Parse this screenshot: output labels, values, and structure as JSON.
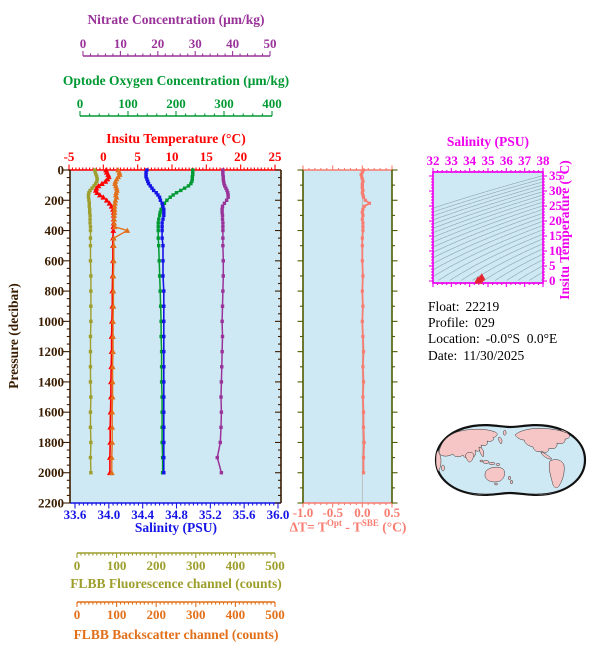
{
  "page": {
    "background": "#ffffff",
    "plot_background": "#cfe9f4"
  },
  "info_box": {
    "lines": [
      {
        "label": "Float:",
        "value": "22219"
      },
      {
        "label": "Profile:",
        "value": "029"
      },
      {
        "label": "Location:",
        "value": "-0.0°S  0.0°E"
      },
      {
        "label": "Date:",
        "value": "11/30/2025"
      }
    ]
  },
  "chart_data": {
    "type": "line",
    "title": "Float profile plot",
    "pressures": [
      0,
      15,
      30,
      45,
      60,
      75,
      90,
      105,
      120,
      135,
      150,
      165,
      180,
      200,
      220,
      240,
      260,
      280,
      300,
      325,
      350,
      375,
      400,
      450,
      500,
      600,
      700,
      800,
      900,
      1000,
      1100,
      1200,
      1300,
      1400,
      1500,
      1600,
      1700,
      1800,
      1900,
      2000
    ],
    "pressure_axis": {
      "label": "Pressure (decibar)",
      "ticks": [
        0,
        200,
        400,
        600,
        800,
        1000,
        1200,
        1400,
        1600,
        1800,
        2000,
        2200
      ],
      "range": [
        0,
        2200
      ],
      "color": "#3a1d00"
    },
    "series": [
      {
        "id": "temperature",
        "label": "Insitu Temperature (°C)",
        "color": "#ff0000",
        "marker": "triangle",
        "ticks": [
          -5,
          0,
          5,
          10,
          15,
          20,
          25
        ],
        "range": [
          -5,
          25
        ],
        "values": [
          0.4,
          0.5,
          0.7,
          0.8,
          0.6,
          0.3,
          -0.2,
          -0.7,
          -1.0,
          -1.1,
          -0.9,
          -0.5,
          0.0,
          0.5,
          0.9,
          1.2,
          1.4,
          1.5,
          1.5,
          1.5,
          1.5,
          1.45,
          1.45,
          1.4,
          1.4,
          1.4,
          1.35,
          1.3,
          1.3,
          1.25,
          1.2,
          1.2,
          1.15,
          1.1,
          1.1,
          1.05,
          1.0,
          1.0,
          0.95,
          0.95
        ]
      },
      {
        "id": "salinity",
        "label": "Salinity (PSU)",
        "color": "#1414e6",
        "marker": "square",
        "ticks": [
          "33.6",
          "34.0",
          "34.4",
          "34.8",
          "35.2",
          "35.6",
          "36.0"
        ],
        "range": [
          33.6,
          36.0
        ],
        "values": [
          34.45,
          34.44,
          34.44,
          34.44,
          34.45,
          34.46,
          34.47,
          34.49,
          34.51,
          34.53,
          34.56,
          34.58,
          34.6,
          34.61,
          34.63,
          34.64,
          34.65,
          34.65,
          34.65,
          34.64,
          34.63,
          34.63,
          34.63,
          34.63,
          34.64,
          34.64,
          34.64,
          34.65,
          34.65,
          34.65,
          34.65,
          34.65,
          34.65,
          34.65,
          34.65,
          34.65,
          34.65,
          34.65,
          34.65,
          34.65
        ]
      },
      {
        "id": "oxygen",
        "label": "Optode Oxygen Concentration (μm/kg)",
        "color": "#009933",
        "marker": "square",
        "ticks": [
          0,
          100,
          200,
          300,
          400
        ],
        "range": [
          0,
          400
        ],
        "values": [
          235,
          235,
          235,
          234,
          234,
          233,
          231,
          226,
          218,
          210,
          201,
          194,
          188,
          181,
          176,
          172,
          169,
          167,
          166,
          164,
          163,
          163,
          163,
          163,
          164,
          165,
          166,
          167,
          168,
          169,
          169,
          170,
          170,
          170,
          171,
          171,
          171,
          171,
          172,
          172
        ]
      },
      {
        "id": "nitrate",
        "label": "Nitrate Concentration (μm/kg)",
        "color": "#993399",
        "marker": "square",
        "ticks": [
          0,
          10,
          20,
          30,
          40,
          50
        ],
        "range": [
          0,
          50
        ],
        "values": [
          37.4,
          37.4,
          37.4,
          37.5,
          37.5,
          37.6,
          37.7,
          37.9,
          38.2,
          38.5,
          38.7,
          38.8,
          38.8,
          38.4,
          37.8,
          37.3,
          37.2,
          37.2,
          37.3,
          37.3,
          37.4,
          37.4,
          37.4,
          37.4,
          37.4,
          37.5,
          37.5,
          37.4,
          37.3,
          37.2,
          37.3,
          37.2,
          37.1,
          37.0,
          36.9,
          37.0,
          36.9,
          36.7,
          35.9,
          37.0
        ]
      },
      {
        "id": "fluorescence",
        "label": "FLBB Fluorescence channel (counts)",
        "color": "#9e9e2c",
        "marker": "square",
        "ticks": [
          0,
          100,
          200,
          300,
          400,
          500
        ],
        "range": [
          0,
          500
        ],
        "values": [
          45,
          46,
          48,
          50,
          51,
          50,
          47,
          43,
          38,
          33,
          30,
          29,
          29,
          30,
          31,
          31,
          32,
          32,
          33,
          33,
          33,
          34,
          34,
          34,
          34,
          34,
          35,
          35,
          35,
          35,
          34,
          34,
          34,
          34,
          35,
          34,
          34,
          35,
          34,
          35
        ]
      },
      {
        "id": "backscatter",
        "label": "FLBB Backscatter channel (counts)",
        "color": "#e2701a",
        "marker": "triangle",
        "ticks": [
          0,
          100,
          200,
          300,
          400,
          500
        ],
        "range": [
          0,
          500
        ],
        "values": [
          104,
          107,
          108,
          104,
          100,
          97,
          96,
          98,
          100,
          101,
          99,
          98,
          100,
          97,
          96,
          95,
          95,
          95,
          94,
          94,
          94,
          95,
          127,
          93,
          93,
          93,
          92,
          92,
          92,
          91,
          91,
          91,
          90,
          90,
          90,
          89,
          89,
          89,
          88,
          88
        ]
      }
    ],
    "delta_panel": {
      "title_parts": {
        "pre": "ΔT= T",
        "sup1": "Opt",
        "mid": " - T",
        "sup2": "SBE",
        "post": " (°C)"
      },
      "color": "#f87c70",
      "frame_color": "#4e5c00",
      "gridline_color": "#b9b9b9",
      "ticks": [
        "-1.0",
        "-0.5",
        "0.0",
        "0.5"
      ],
      "range": [
        -1.0,
        0.5
      ],
      "values": [
        0.02,
        0.0,
        -0.02,
        -0.01,
        0.0,
        0.01,
        0.0,
        0.0,
        0.0,
        0.01,
        0.0,
        0.01,
        0.02,
        0.05,
        0.12,
        0.03,
        0.01,
        0.0,
        0.01,
        0.0,
        0.01,
        0.01,
        0.01,
        0.0,
        0.0,
        0.0,
        0.01,
        0.0,
        0.01,
        0.0,
        0.01,
        0.02,
        0.01,
        0.02,
        0.01,
        0.02,
        0.02,
        0.03,
        0.02,
        0.02
      ]
    },
    "ts_panel": {
      "x_label": "Salinity (PSU)",
      "y_label": "Insitu Temperature (°C)",
      "color": "#ee00ee",
      "contour_color": "#93acb4",
      "point_color": "#e8242e",
      "x_ticks": [
        32,
        33,
        34,
        35,
        36,
        37,
        38
      ],
      "x_range": [
        32,
        38
      ],
      "y_ticks": [
        0,
        5,
        10,
        15,
        20,
        25,
        30,
        35
      ],
      "y_range": [
        0,
        35
      ],
      "points": [
        {
          "s": 34.45,
          "t": 0.4
        },
        {
          "s": 34.5,
          "t": 0.1
        },
        {
          "s": 34.56,
          "t": 0.6
        },
        {
          "s": 34.63,
          "t": 1.0
        },
        {
          "s": 34.66,
          "t": 1.4
        }
      ]
    },
    "map_colors": {
      "land": "#f6c5c5",
      "ocean": "#cfe9f4",
      "outline": "#111111"
    }
  }
}
